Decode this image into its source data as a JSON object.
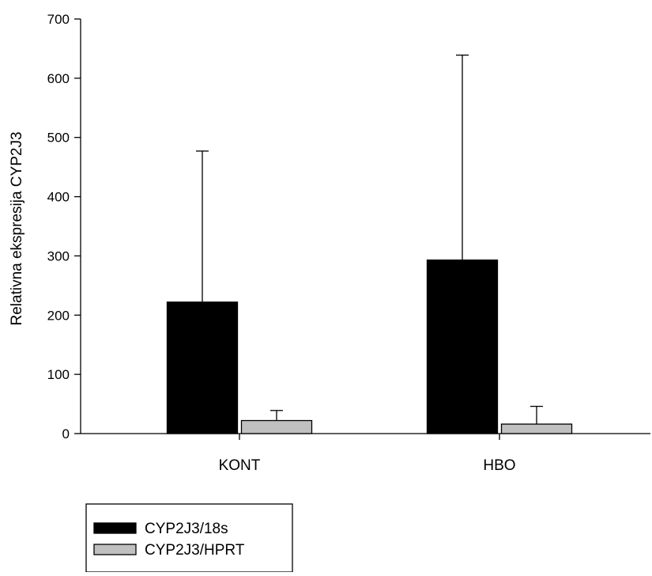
{
  "chart_data": {
    "type": "bar",
    "title": "",
    "xlabel": "",
    "ylabel": "Relativna ekspresija CYP2J3",
    "ylim": [
      0,
      700
    ],
    "yticks": [
      0,
      100,
      200,
      300,
      400,
      500,
      600,
      700
    ],
    "categories": [
      "KONT",
      "HBO"
    ],
    "series": [
      {
        "name": "CYP2J3/18s",
        "color": "#000000",
        "values": [
          222,
          293
        ],
        "error_upper": [
          477,
          639
        ]
      },
      {
        "name": "CYP2J3/HPRT",
        "color": "#c0c0c0",
        "values": [
          22,
          16
        ],
        "error_upper": [
          39,
          46
        ]
      }
    ],
    "grid": false,
    "legend_position": "bottom-left"
  }
}
